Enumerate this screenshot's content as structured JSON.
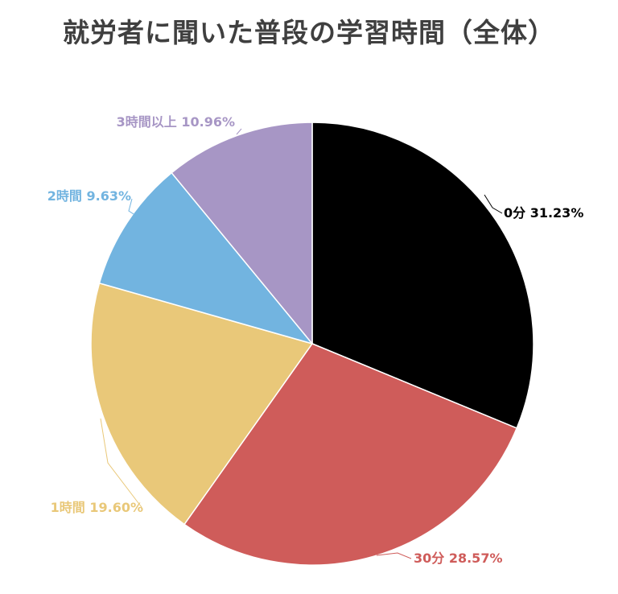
{
  "chart_data": {
    "type": "pie",
    "title": "就労者に聞いた普段の学習時間（全体）",
    "start_angle_deg": 0,
    "direction": "clockwise",
    "slices": [
      {
        "label": "0分",
        "value": 31.23,
        "value_label": "31.23%",
        "text": "0分 31.23%",
        "color": "#000000",
        "label_color": "#000000"
      },
      {
        "label": "30分",
        "value": 28.57,
        "value_label": "28.57%",
        "text": "30分 28.57%",
        "color": "#cf5c5a",
        "label_color": "#cf5c5a"
      },
      {
        "label": "1時間",
        "value": 19.6,
        "value_label": "19.60%",
        "text": "1時間 19.60%",
        "color": "#e9c879",
        "label_color": "#e9c879"
      },
      {
        "label": "2時間",
        "value": 9.63,
        "value_label": "9.63%",
        "text": "2時間 9.63%",
        "color": "#72b4e0",
        "label_color": "#72b4e0"
      },
      {
        "label": "3時間以上",
        "value": 10.96,
        "value_label": "10.96%",
        "text": "3時間以上 10.96%",
        "color": "#a796c5",
        "label_color": "#a796c5"
      }
    ],
    "legend": "none"
  }
}
